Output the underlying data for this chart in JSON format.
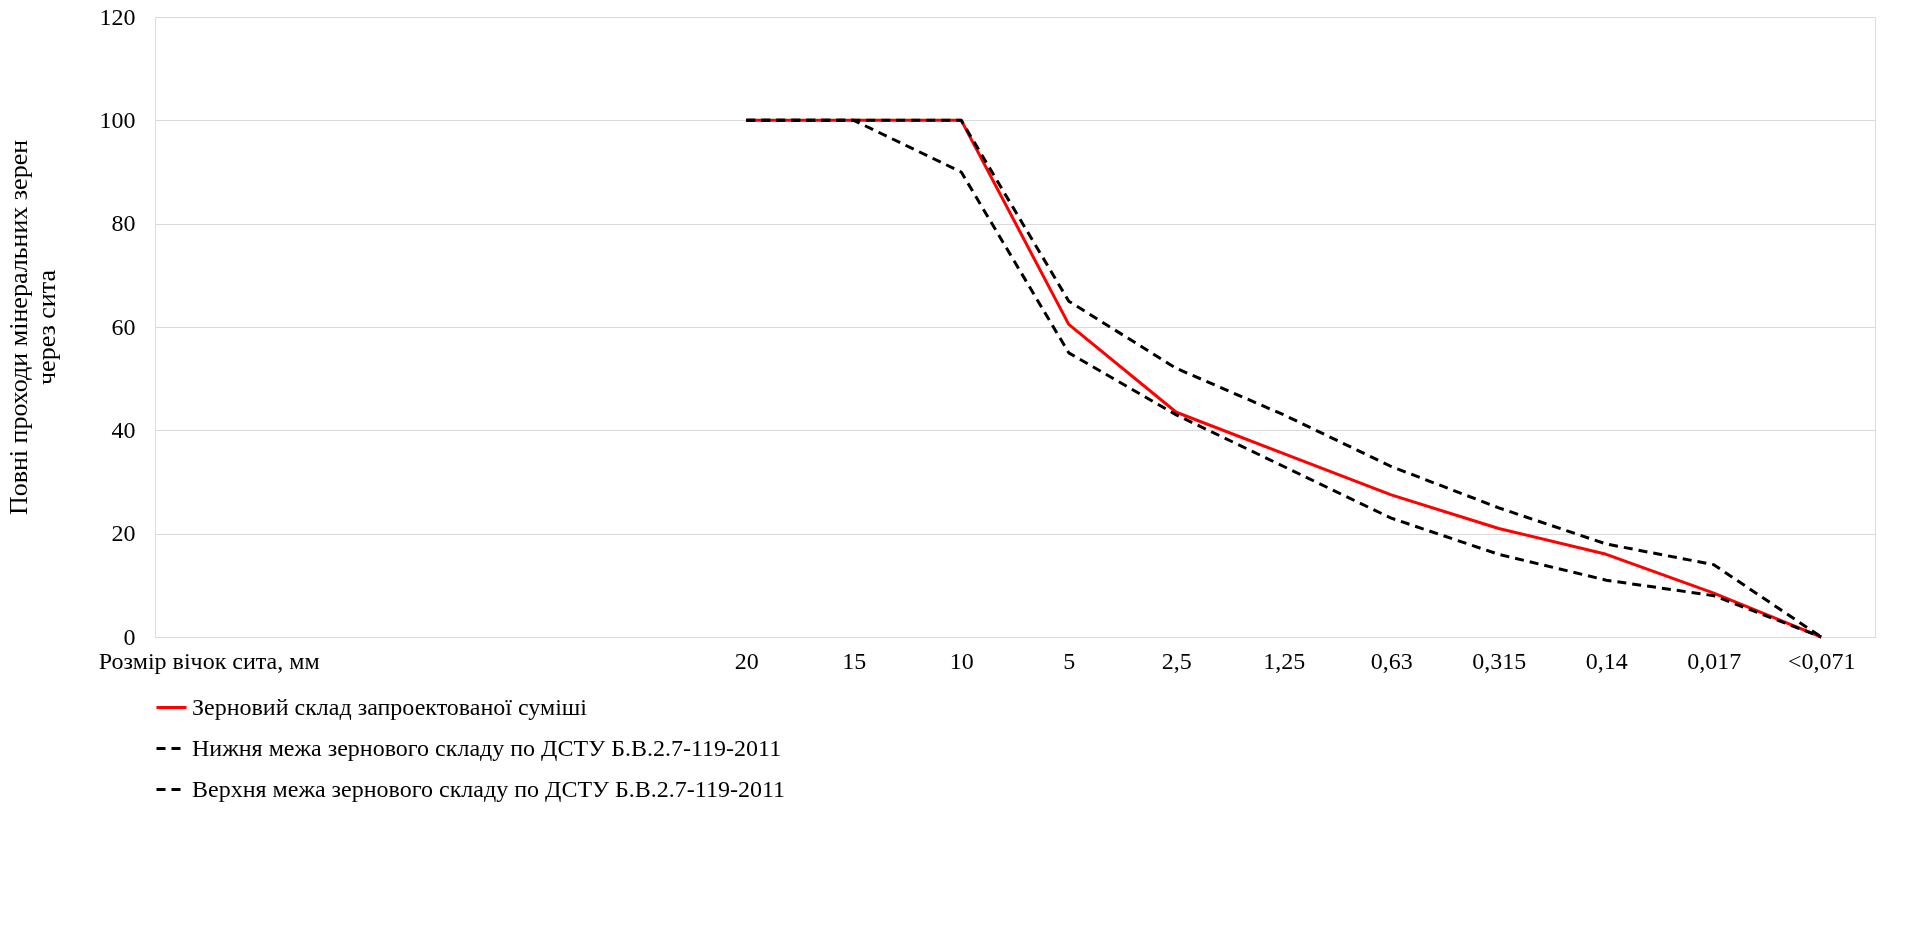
{
  "chart_data": {
    "type": "line",
    "xlabel": null,
    "ylabel": [
      "Повні проходи мінеральних зерен",
      "через сита"
    ],
    "categories": [
      "Розмір вічок сита, мм",
      null,
      null,
      null,
      null,
      "20",
      "15",
      "10",
      "5",
      "2,5",
      "1,25",
      "0,63",
      "0,315",
      "0,14",
      "0,017",
      "<0,071"
    ],
    "series": [
      {
        "name": "Зерновий склад запроектованої суміші",
        "color": "#ff0000",
        "line_style": "solid",
        "values": [
          null,
          null,
          null,
          null,
          null,
          100,
          100,
          100,
          60.5,
          43.5,
          35.5,
          27.5,
          21,
          16,
          8.5,
          0
        ]
      },
      {
        "name": "Нижня межа зернового складу по ДСТУ Б.В.2.7-119-2011",
        "color": "#000000",
        "line_style": "dashed",
        "values": [
          null,
          null,
          null,
          null,
          null,
          100,
          100,
          90,
          55,
          43,
          33,
          23,
          16,
          11,
          8,
          0
        ]
      },
      {
        "name": "Верхня межа зернового складу по ДСТУ Б.В.2.7-119-2011",
        "color": "#000000",
        "line_style": "dashed",
        "values": [
          null,
          null,
          null,
          null,
          null,
          100,
          100,
          100,
          65,
          52,
          43,
          33,
          25,
          18,
          14,
          0
        ]
      }
    ],
    "ylim": [
      0,
      120
    ],
    "yticks": [
      0,
      20,
      40,
      60,
      80,
      100,
      120
    ],
    "grid": "y",
    "legend": "bottom",
    "marker": "none"
  }
}
